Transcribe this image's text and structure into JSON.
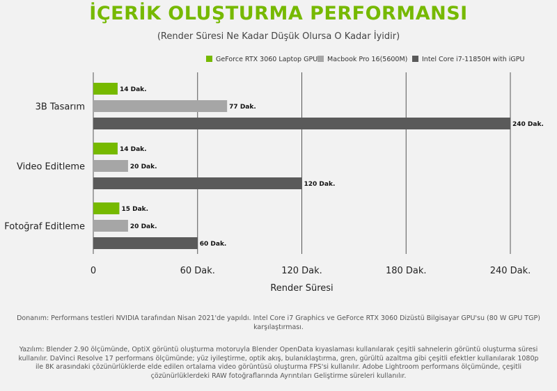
{
  "title": "İÇERİK OLUŞTURMA PERFORMANSI",
  "subtitle": "(Render Süresi Ne Kadar Düşük Olursa O Kadar İyidir)",
  "colors": {
    "title": "#76b900",
    "rtx": "#76b900",
    "macbook": "#a6a6a6",
    "intel": "#5a5a5a"
  },
  "chart_data": {
    "type": "bar",
    "orientation": "horizontal",
    "categories": [
      "3B Tasarım",
      "Video Editleme",
      "Fotoğraf Editleme"
    ],
    "series": [
      {
        "name": "GeForce RTX 3060 Laptop GPU",
        "values": [
          14,
          14,
          15
        ],
        "labels": [
          "14 Dak.",
          "14 Dak.",
          "15 Dak."
        ],
        "color": "#76b900"
      },
      {
        "name": "Macbook Pro 16(5600M)",
        "values": [
          77,
          20,
          20
        ],
        "labels": [
          "77 Dak.",
          "20 Dak.",
          "20 Dak."
        ],
        "color": "#a6a6a6"
      },
      {
        "name": "Intel Core i7-11850H with iGPU",
        "values": [
          240,
          120,
          60
        ],
        "labels": [
          "240 Dak.",
          "120 Dak.",
          "60 Dak."
        ],
        "color": "#5a5a5a"
      }
    ],
    "xlim": [
      0,
      240
    ],
    "xticks": [
      0,
      60,
      120,
      180,
      240
    ],
    "xtick_labels": [
      "0",
      "60 Dak.",
      "120 Dak.",
      "180 Dak.",
      "240 Dak."
    ],
    "xlabel": "Render Süresi",
    "ylabel": "",
    "grid": "vertical",
    "legend_position": "top-right"
  },
  "footnotes": {
    "hardware": "Donanım:  Performans testleri NVIDIA tarafından Nisan 2021'de yapıldı.  Intel Core i7 Graphics ve GeForce RTX 3060 Dizüstü Bilgisayar GPU'su (80 W GPU TGP) karşılaştırması.",
    "software": "Yazılım: Blender 2.90 ölçümünde, OptiX görüntü oluşturma motoruyla Blender OpenData kıyaslaması kullanılarak çeşitli sahnelerin görüntü oluşturma süresi kullanılır.  DaVinci Resolve 17 performans ölçümünde; yüz iyileştirme, optik akış, bulanıklaştırma, gren, gürültü azaltma gibi çeşitli efektler kullanılarak 1080p ile 8K arasındaki çözünürlüklerde elde edilen ortalama video görüntüsü oluşturma FPS'si kullanılır.  Adobe Lightroom performans ölçümünde, çeşitli çözünürlüklerdeki RAW fotoğraflarında Ayrıntıları Geliştirme süreleri kullanılır."
  }
}
